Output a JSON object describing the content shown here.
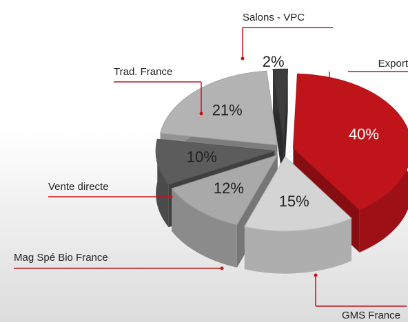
{
  "chart_data": {
    "type": "pie",
    "categories": [
      "Export",
      "GMS France",
      "Mag Spé Bio France",
      "Vente directe",
      "Trad. France",
      "Salons - VPC"
    ],
    "values": [
      40,
      15,
      12,
      10,
      21,
      2
    ],
    "value_labels": [
      "40%",
      "15%",
      "12%",
      "10%",
      "21%",
      "2%"
    ],
    "colors": [
      "#c0141b",
      "#d4d4d4",
      "#a9a9a9",
      "#5c5c5c",
      "#b3b3b3",
      "#3d3d3d"
    ]
  }
}
